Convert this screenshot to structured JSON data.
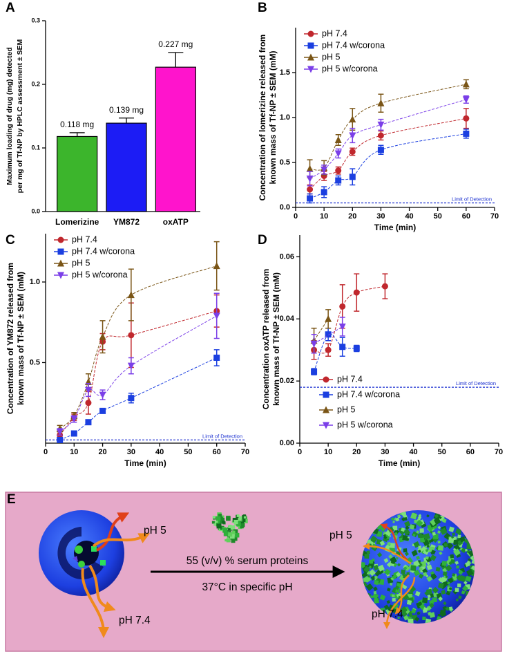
{
  "chart_data": [
    {
      "type": "bar",
      "label": "A",
      "ylabel": [
        "Maximum loading of drug (mg) detected",
        "per mg of Tf-NP by HPLC assessment ± SEM"
      ],
      "categories": [
        "Lomerizine",
        "YM872",
        "oxATP"
      ],
      "values": [
        0.118,
        0.139,
        0.227
      ],
      "errors": [
        0.006,
        0.008,
        0.023
      ],
      "value_labels": [
        "0.118 mg",
        "0.139 mg",
        "0.227 mg"
      ],
      "colors": [
        "#3cb52c",
        "#1c1cf5",
        "#ff14cc"
      ],
      "ylim": [
        0,
        0.3
      ],
      "yticks": [
        {
          "value": 0,
          "label": "0.0"
        },
        0.1,
        0.2,
        0.3
      ]
    },
    {
      "type": "scatter",
      "label": "B",
      "ylabel": [
        "Concentration of lomerizine released from",
        "known mass of Tf-NP ± SEM (mM)"
      ],
      "xlabel": "Time (min)",
      "x": [
        5,
        10,
        15,
        20,
        30,
        60
      ],
      "series": [
        {
          "name": "pH 7.4",
          "color": "#c0272d",
          "marker": "circle",
          "values": [
            0.2,
            0.35,
            0.41,
            0.62,
            0.8,
            0.99
          ],
          "errors": [
            0.05,
            0.05,
            0.04,
            0.04,
            0.05,
            0.11
          ]
        },
        {
          "name": "pH 7.4 w/corona",
          "color": "#1b3fe0",
          "marker": "square",
          "values": [
            0.1,
            0.17,
            0.3,
            0.34,
            0.64,
            0.82
          ],
          "errors": [
            0.05,
            0.06,
            0.05,
            0.09,
            0.05,
            0.05
          ]
        },
        {
          "name": "pH 5",
          "color": "#7a5516",
          "marker": "triangle-up",
          "values": [
            0.43,
            0.44,
            0.75,
            0.98,
            1.16,
            1.37
          ],
          "errors": [
            0.1,
            0.08,
            0.06,
            0.12,
            0.1,
            0.05
          ]
        },
        {
          "name": "pH 5 w/corona",
          "color": "#7b3fe8",
          "marker": "triangle-down",
          "values": [
            0.32,
            0.42,
            0.6,
            0.8,
            0.92,
            1.2
          ],
          "errors": [
            0.08,
            0.05,
            0.05,
            0.08,
            0.06,
            0.04
          ]
        }
      ],
      "limit_of_detection": {
        "label": "Limit of Detection",
        "value": 0.05
      },
      "legend": "upper left",
      "xlim": [
        0,
        70
      ],
      "xticks": [
        0,
        10,
        20,
        30,
        40,
        50,
        60,
        70
      ],
      "ylim": [
        0,
        2.0
      ],
      "yticks": [
        {
          "value": 0,
          "label": "0.0"
        },
        0.5,
        {
          "value": 1,
          "label": "1.0"
        },
        1.5
      ]
    },
    {
      "type": "scatter",
      "label": "C",
      "ylabel": [
        "Concentration of YM872 released from",
        "known mass of Tf-NP ± SEM (mM)"
      ],
      "xlabel": "Time (min)",
      "x": [
        5,
        10,
        15,
        20,
        30,
        60
      ],
      "series": [
        {
          "name": "pH 7.4",
          "color": "#c0272d",
          "marker": "circle",
          "values": [
            0.05,
            0.16,
            0.25,
            0.63,
            0.67,
            0.82
          ],
          "errors": [
            0.02,
            0.02,
            0.07,
            0.05,
            0.2,
            0.1
          ]
        },
        {
          "name": "pH 7.4 w/corona",
          "color": "#1b3fe0",
          "marker": "square",
          "values": [
            0.02,
            0.06,
            0.13,
            0.2,
            0.28,
            0.53
          ],
          "errors": [
            0.01,
            0.01,
            0.01,
            0.01,
            0.03,
            0.05
          ]
        },
        {
          "name": "pH 5",
          "color": "#7a5516",
          "marker": "triangle-up",
          "values": [
            0.09,
            0.17,
            0.38,
            0.66,
            0.92,
            1.1
          ],
          "errors": [
            0.02,
            0.02,
            0.05,
            0.1,
            0.16,
            0.15
          ]
        },
        {
          "name": "pH 5 w/corona",
          "color": "#7b3fe8",
          "marker": "triangle-down",
          "values": [
            0.07,
            0.15,
            0.33,
            0.3,
            0.48,
            0.79
          ],
          "errors": [
            0.02,
            0.02,
            0.04,
            0.03,
            0.05,
            0.14
          ]
        }
      ],
      "limit_of_detection": {
        "label": "Limit of Detection",
        "value": 0.02
      },
      "legend": "upper left",
      "xlim": [
        0,
        70
      ],
      "xticks": [
        0,
        10,
        20,
        30,
        40,
        50,
        60,
        70
      ],
      "ylim": [
        0,
        1.3
      ],
      "yticks": [
        0.5,
        {
          "value": 1,
          "label": "1.0"
        }
      ]
    },
    {
      "type": "scatter",
      "label": "D",
      "ylabel": [
        "Concentration oxATP released from",
        "known mass of Tf-NP ± SEM (mM)"
      ],
      "xlabel": "Time (min)",
      "series": [
        {
          "name": "pH 7.4",
          "color": "#c0272d",
          "marker": "circle",
          "x": [
            5,
            10,
            15,
            20,
            30
          ],
          "values": [
            0.03,
            0.03,
            0.044,
            0.0485,
            0.0505
          ],
          "errors": [
            0.003,
            0.002,
            0.007,
            0.006,
            0.004
          ]
        },
        {
          "name": "pH 7.4 w/corona",
          "color": "#1b3fe0",
          "marker": "square",
          "x": [
            5,
            10,
            15,
            20
          ],
          "values": [
            0.023,
            0.035,
            0.031,
            0.0305
          ],
          "errors": [
            0.001,
            0.002,
            0.003,
            0.001
          ]
        },
        {
          "name": "pH 5",
          "color": "#7a5516",
          "marker": "triangle-up",
          "x": [
            5,
            10
          ],
          "values": [
            0.033,
            0.04
          ],
          "errors": [
            0.004,
            0.003
          ]
        },
        {
          "name": "pH 5 w/corona",
          "color": "#7b3fe8",
          "marker": "triangle-down",
          "x": [
            5,
            15
          ],
          "values": [
            0.032,
            0.0375
          ],
          "errors": [
            0.003,
            0.003
          ]
        }
      ],
      "limit_of_detection": {
        "label": "Limit of Detection",
        "value": 0.018
      },
      "legend": "lower right",
      "xlim": [
        0,
        70
      ],
      "xticks": [
        0,
        10,
        20,
        30,
        40,
        50,
        60,
        70
      ],
      "ylim": [
        0,
        0.067
      ],
      "yticks": [
        {
          "value": 0,
          "label": "0.00"
        },
        0.02,
        0.04,
        0.06
      ]
    }
  ],
  "diagram": {
    "label": "E",
    "left": {
      "acid": "pH 5",
      "neutral": "pH 7.4"
    },
    "arrow": [
      "55 (v/v) % serum proteins",
      "37°C in specific pH"
    ],
    "right": {
      "acid": "pH 5",
      "neutral": "pH 7.4"
    }
  }
}
